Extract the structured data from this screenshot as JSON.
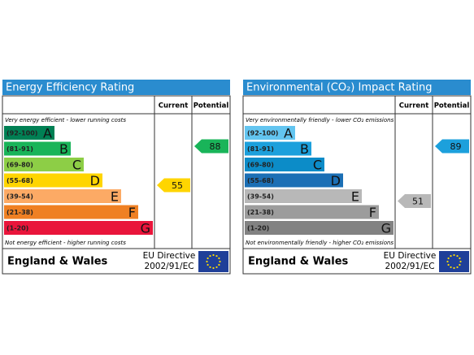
{
  "panels": [
    {
      "title": "Energy Efficiency Rating",
      "headers": {
        "current": "Current",
        "potential": "Potential"
      },
      "top_note": "Very energy efficient - lower running costs",
      "bottom_note": "Not energy efficient - higher running costs",
      "bands": [
        {
          "range": "(92-100)",
          "letter": "A",
          "color": "#008054"
        },
        {
          "range": "(81-91)",
          "letter": "B",
          "color": "#19b459"
        },
        {
          "range": "(69-80)",
          "letter": "C",
          "color": "#8dce46"
        },
        {
          "range": "(55-68)",
          "letter": "D",
          "color": "#ffd500"
        },
        {
          "range": "(39-54)",
          "letter": "E",
          "color": "#fcaa65"
        },
        {
          "range": "(21-38)",
          "letter": "F",
          "color": "#ef8023"
        },
        {
          "range": "(1-20)",
          "letter": "G",
          "color": "#e9153b"
        }
      ],
      "current": 55,
      "potential": 88,
      "footer": {
        "region": "England & Wales",
        "directive": "EU Directive",
        "code": "2002/91/EC"
      }
    },
    {
      "title": "Environmental (CO₂) Impact Rating",
      "headers": {
        "current": "Current",
        "potential": "Potential"
      },
      "top_note": "Very environmentally friendly - lower CO₂ emissions",
      "bottom_note": "Not environmentally friendly - higher CO₂ emissions",
      "bands": [
        {
          "range": "(92-100)",
          "letter": "A",
          "color": "#63c5f0"
        },
        {
          "range": "(81-91)",
          "letter": "B",
          "color": "#1ca0dc"
        },
        {
          "range": "(69-80)",
          "letter": "C",
          "color": "#0c8cc8"
        },
        {
          "range": "(55-68)",
          "letter": "D",
          "color": "#1b6fb5"
        },
        {
          "range": "(39-54)",
          "letter": "E",
          "color": "#b8b8b8"
        },
        {
          "range": "(21-38)",
          "letter": "F",
          "color": "#9c9c9c"
        },
        {
          "range": "(1-20)",
          "letter": "G",
          "color": "#828282"
        }
      ],
      "current": 51,
      "potential": 89,
      "footer": {
        "region": "England & Wales",
        "directive": "EU Directive",
        "code": "2002/91/EC"
      }
    }
  ]
}
